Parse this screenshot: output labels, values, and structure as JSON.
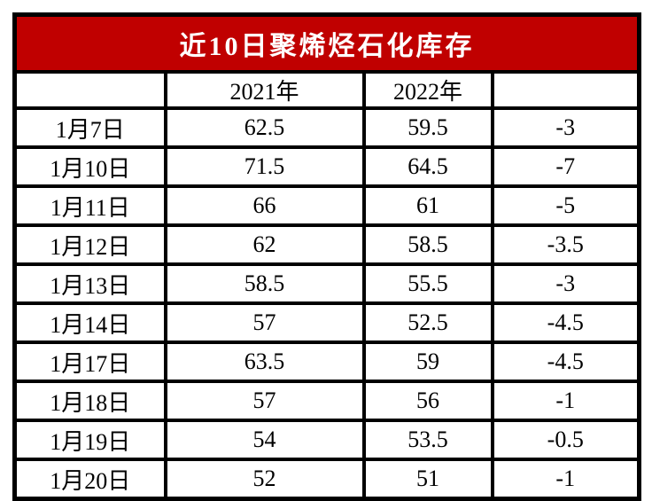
{
  "title": "近10日聚烯烃石化库存",
  "colors": {
    "title_bg": "#C00000",
    "title_text": "#FFFFFF",
    "border": "#000000",
    "cell_bg": "#FFFFFF",
    "cell_text": "#000000"
  },
  "chart_data": {
    "type": "table",
    "title": "近10日聚烯烃石化库存",
    "column_headers": [
      "",
      "2021年",
      "2022年",
      ""
    ],
    "categories": [
      "1月7日",
      "1月10日",
      "1月11日",
      "1月12日",
      "1月13日",
      "1月14日",
      "1月17日",
      "1月18日",
      "1月19日",
      "1月20日"
    ],
    "series": [
      {
        "name": "2021年",
        "values": [
          62.5,
          71.5,
          66,
          62,
          58.5,
          57,
          63.5,
          57,
          54,
          52
        ]
      },
      {
        "name": "2022年",
        "values": [
          59.5,
          64.5,
          61,
          58.5,
          55.5,
          52.5,
          59,
          56,
          53.5,
          51
        ]
      },
      {
        "name": "",
        "values": [
          -3,
          -7,
          -5,
          -3.5,
          -3,
          -4.5,
          -4.5,
          -1,
          -0.5,
          -1
        ]
      }
    ],
    "layout": {
      "grid": "all-borders",
      "title_position": "top-merged-row"
    }
  }
}
